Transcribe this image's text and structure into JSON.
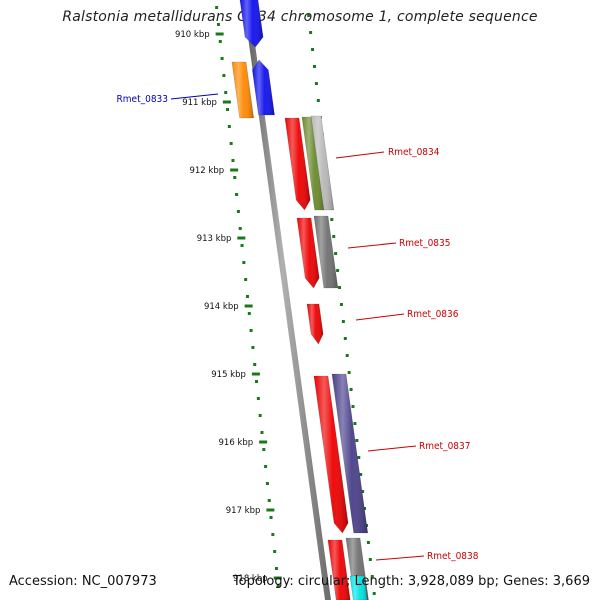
{
  "title": "Ralstonia metallidurans CH34 chromosome 1, complete sequence",
  "footer": {
    "accession": "Accession: NC_007973",
    "summary": "Topology: circular; Length: 3,928,089 bp; Genes: 3,669"
  },
  "colors": {
    "backbone": "#8a8a8a",
    "tick_marks": "#1a7a1a",
    "label_forward": "#cc0000",
    "label_reverse": "#0000aa"
  },
  "ticks": [
    {
      "label": "910 kbp"
    },
    {
      "label": "911 kbp"
    },
    {
      "label": "912 kbp"
    },
    {
      "label": "913 kbp"
    },
    {
      "label": "914 kbp"
    },
    {
      "label": "915 kbp"
    },
    {
      "label": "916 kbp"
    },
    {
      "label": "917 kbp"
    },
    {
      "label": "918 kbp"
    }
  ],
  "genes": [
    {
      "name": "",
      "strand": "-",
      "color": "#1010ee"
    },
    {
      "name": "Rmet_0833",
      "strand": "-",
      "color": "#1010ee"
    },
    {
      "name": "",
      "strand": "-",
      "color": "#ff8800"
    },
    {
      "name": "Rmet_0834",
      "strand": "+",
      "color": "#ee0000"
    },
    {
      "name": "",
      "strand": "+",
      "color": "#6a8a2a"
    },
    {
      "name": "",
      "strand": "+",
      "color": "#b8b8b8"
    },
    {
      "name": "Rmet_0835",
      "strand": "+",
      "color": "#ee0000"
    },
    {
      "name": "",
      "strand": "+",
      "color": "#707070"
    },
    {
      "name": "Rmet_0836",
      "strand": "+",
      "color": "#ee0000"
    },
    {
      "name": "Rmet_0837",
      "strand": "+",
      "color": "#ee0000"
    },
    {
      "name": "",
      "strand": "+",
      "color": "#4a3f8a"
    },
    {
      "name": "Rmet_0838",
      "strand": "+",
      "color": "#ee0000"
    },
    {
      "name": "",
      "strand": "+",
      "color": "#707070"
    },
    {
      "name": "",
      "strand": "+",
      "color": "#00e5e5"
    }
  ]
}
